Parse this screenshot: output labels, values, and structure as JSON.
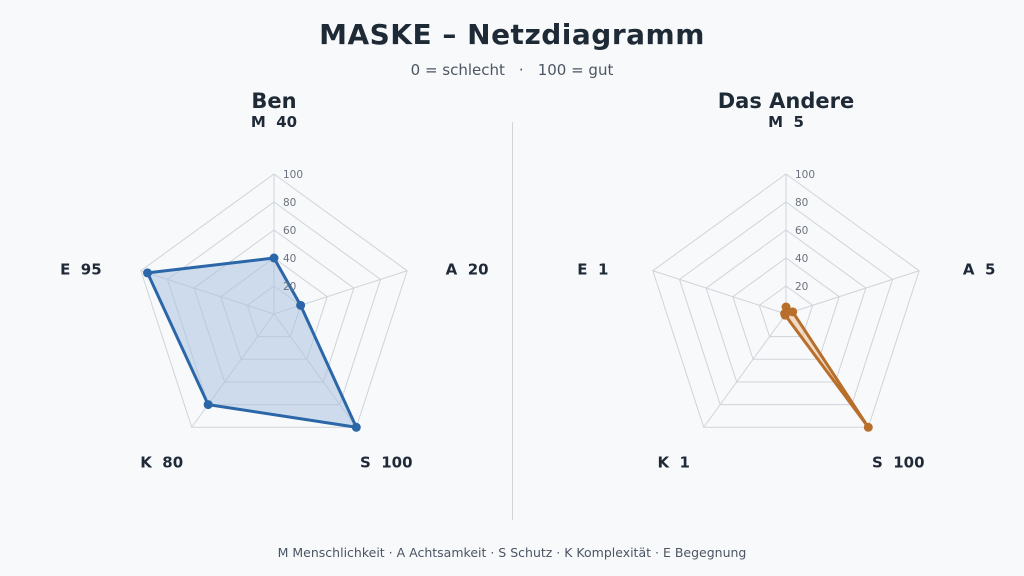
{
  "header": {
    "title": "MASKE – Netzdiagramm",
    "subtitle_left": "0 = schlecht",
    "subtitle_sep": "·",
    "subtitle_right": "100 = gut"
  },
  "legend_text": "M Menschlichkeit · A Achtsamkeit · S Schutz · K Komplexität · E Begegnung",
  "chart_data": [
    {
      "type": "radar",
      "title": "Ben",
      "axes": [
        "M",
        "A",
        "S",
        "K",
        "E"
      ],
      "values": [
        40,
        20,
        100,
        80,
        95
      ],
      "range": [
        0,
        100
      ],
      "ticks": [
        20,
        40,
        60,
        80,
        100
      ],
      "color": "#2b67a8",
      "fill": "#a9c3e0"
    },
    {
      "type": "radar",
      "title": "Das Andere",
      "axes": [
        "M",
        "A",
        "S",
        "K",
        "E"
      ],
      "values": [
        5,
        5,
        100,
        1,
        1
      ],
      "range": [
        0,
        100
      ],
      "ticks": [
        20,
        40,
        60,
        80,
        100
      ],
      "color": "#b86f2b",
      "fill": "#e8c39a"
    }
  ]
}
